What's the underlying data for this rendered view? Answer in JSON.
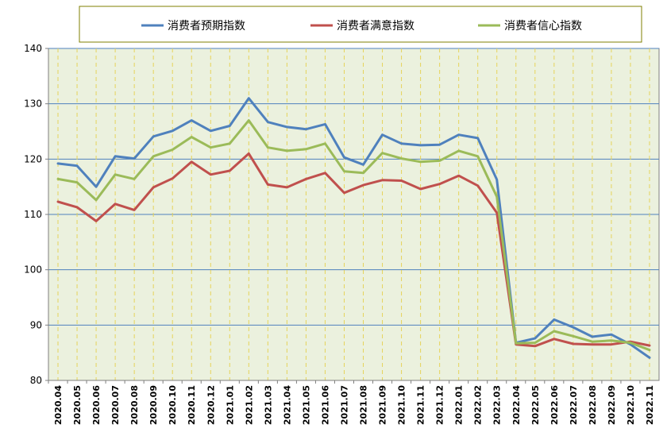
{
  "chart_data": {
    "type": "line",
    "title": "",
    "xlabel": "",
    "ylabel": "",
    "ylim": [
      80,
      140
    ],
    "yticks": [
      80,
      90,
      100,
      110,
      120,
      130,
      140
    ],
    "grid": "horizontal solid blue, vertical dashed yellow",
    "legend_position": "top",
    "background_color": "#ebf1de",
    "categories": [
      "2020.04",
      "2020.05",
      "2020.06",
      "2020.07",
      "2020.08",
      "2020.09",
      "2020.10",
      "2020.11",
      "2020.12",
      "2021.01",
      "2021.02",
      "2021.03",
      "2021.04",
      "2021.05",
      "2021.06",
      "2021.07",
      "2021.08",
      "2021.09",
      "2021.10",
      "2021.11",
      "2021.12",
      "2022.01",
      "2022.02",
      "2022.03",
      "2022.04",
      "2022.05",
      "2022.06",
      "2022.07",
      "2022.08",
      "2022.09",
      "2022.10",
      "2022.11"
    ],
    "series": [
      {
        "name": "消费者预期指数",
        "color": "#4f81bd",
        "values": [
          119.2,
          118.8,
          115.0,
          120.5,
          120.1,
          124.1,
          125.1,
          127.0,
          125.1,
          126.0,
          131.0,
          126.7,
          125.8,
          125.4,
          126.3,
          120.3,
          119.0,
          124.4,
          122.8,
          122.5,
          122.6,
          124.4,
          123.8,
          116.3,
          86.8,
          87.6,
          91.0,
          89.6,
          87.9,
          88.3,
          86.5,
          84.1
        ]
      },
      {
        "name": "消费者满意指数",
        "color": "#c0504d",
        "values": [
          112.3,
          111.3,
          108.8,
          111.9,
          110.8,
          114.9,
          116.5,
          119.5,
          117.2,
          117.9,
          121.0,
          115.4,
          114.9,
          116.4,
          117.5,
          113.9,
          115.3,
          116.2,
          116.1,
          114.6,
          115.5,
          117.0,
          115.2,
          110.3,
          86.5,
          86.2,
          87.5,
          86.6,
          86.5,
          86.5,
          87.0,
          86.3
        ]
      },
      {
        "name": "消费者信心指数",
        "color": "#9bbb59",
        "values": [
          116.4,
          115.8,
          112.6,
          117.2,
          116.4,
          120.5,
          121.7,
          124.0,
          122.1,
          122.8,
          127.0,
          122.1,
          121.5,
          121.8,
          122.8,
          117.8,
          117.5,
          121.1,
          120.1,
          119.5,
          119.7,
          121.5,
          120.5,
          113.2,
          86.7,
          86.8,
          88.9,
          88.0,
          87.0,
          87.2,
          86.8,
          85.5
        ]
      }
    ]
  }
}
